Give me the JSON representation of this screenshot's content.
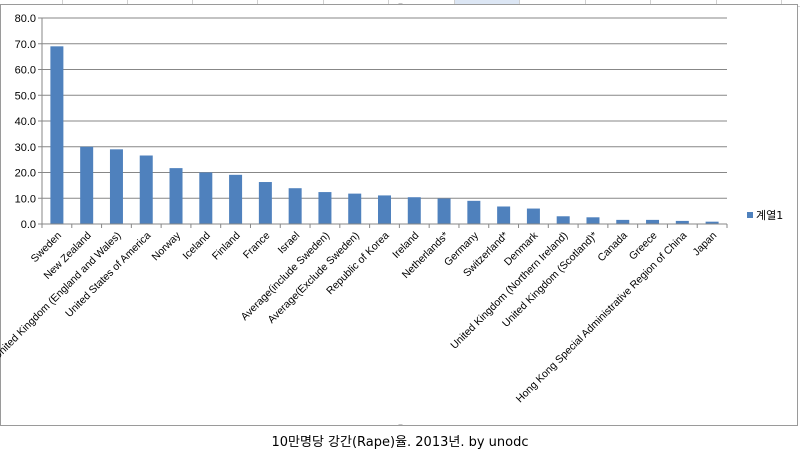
{
  "caption": "10만명당 강간(Rape)율. 2013년. by unodc",
  "colors": {
    "bar": "#4f81bd",
    "grid": "#878787",
    "axis": "#878787"
  },
  "chart_data": {
    "type": "bar",
    "ylim": [
      0,
      80
    ],
    "yticks": [
      "0.0",
      "10.0",
      "20.0",
      "30.0",
      "40.0",
      "50.0",
      "60.0",
      "70.0",
      "80.0"
    ],
    "grid": true,
    "legend": {
      "placement": "right",
      "entries": [
        "계열1"
      ]
    },
    "categories": [
      "Sweden",
      "New Zealand",
      "United Kingdom (England and Wales)",
      "United States of America",
      "Norway",
      "Iceland",
      "Finland",
      "France",
      "Israel",
      "Average(include Sweden)",
      "Average(Exclude Sweden)",
      "Republic of Korea",
      "Ireland",
      "Netherlands*",
      "Germany",
      "Switzerland*",
      "Denmark",
      "United Kingdom (Northern Ireland)",
      "United Kingdom (Scotland)*",
      "Canada",
      "Greece",
      "Hong Kong Special Administrative Region of China",
      "Japan"
    ],
    "series": [
      {
        "name": "계열1",
        "values": [
          69.0,
          30.0,
          29.0,
          26.6,
          21.7,
          20.0,
          19.1,
          16.3,
          13.9,
          12.4,
          11.8,
          11.1,
          10.4,
          9.9,
          9.0,
          6.8,
          6.0,
          3.0,
          2.6,
          1.6,
          1.6,
          1.2,
          0.9
        ]
      }
    ]
  }
}
